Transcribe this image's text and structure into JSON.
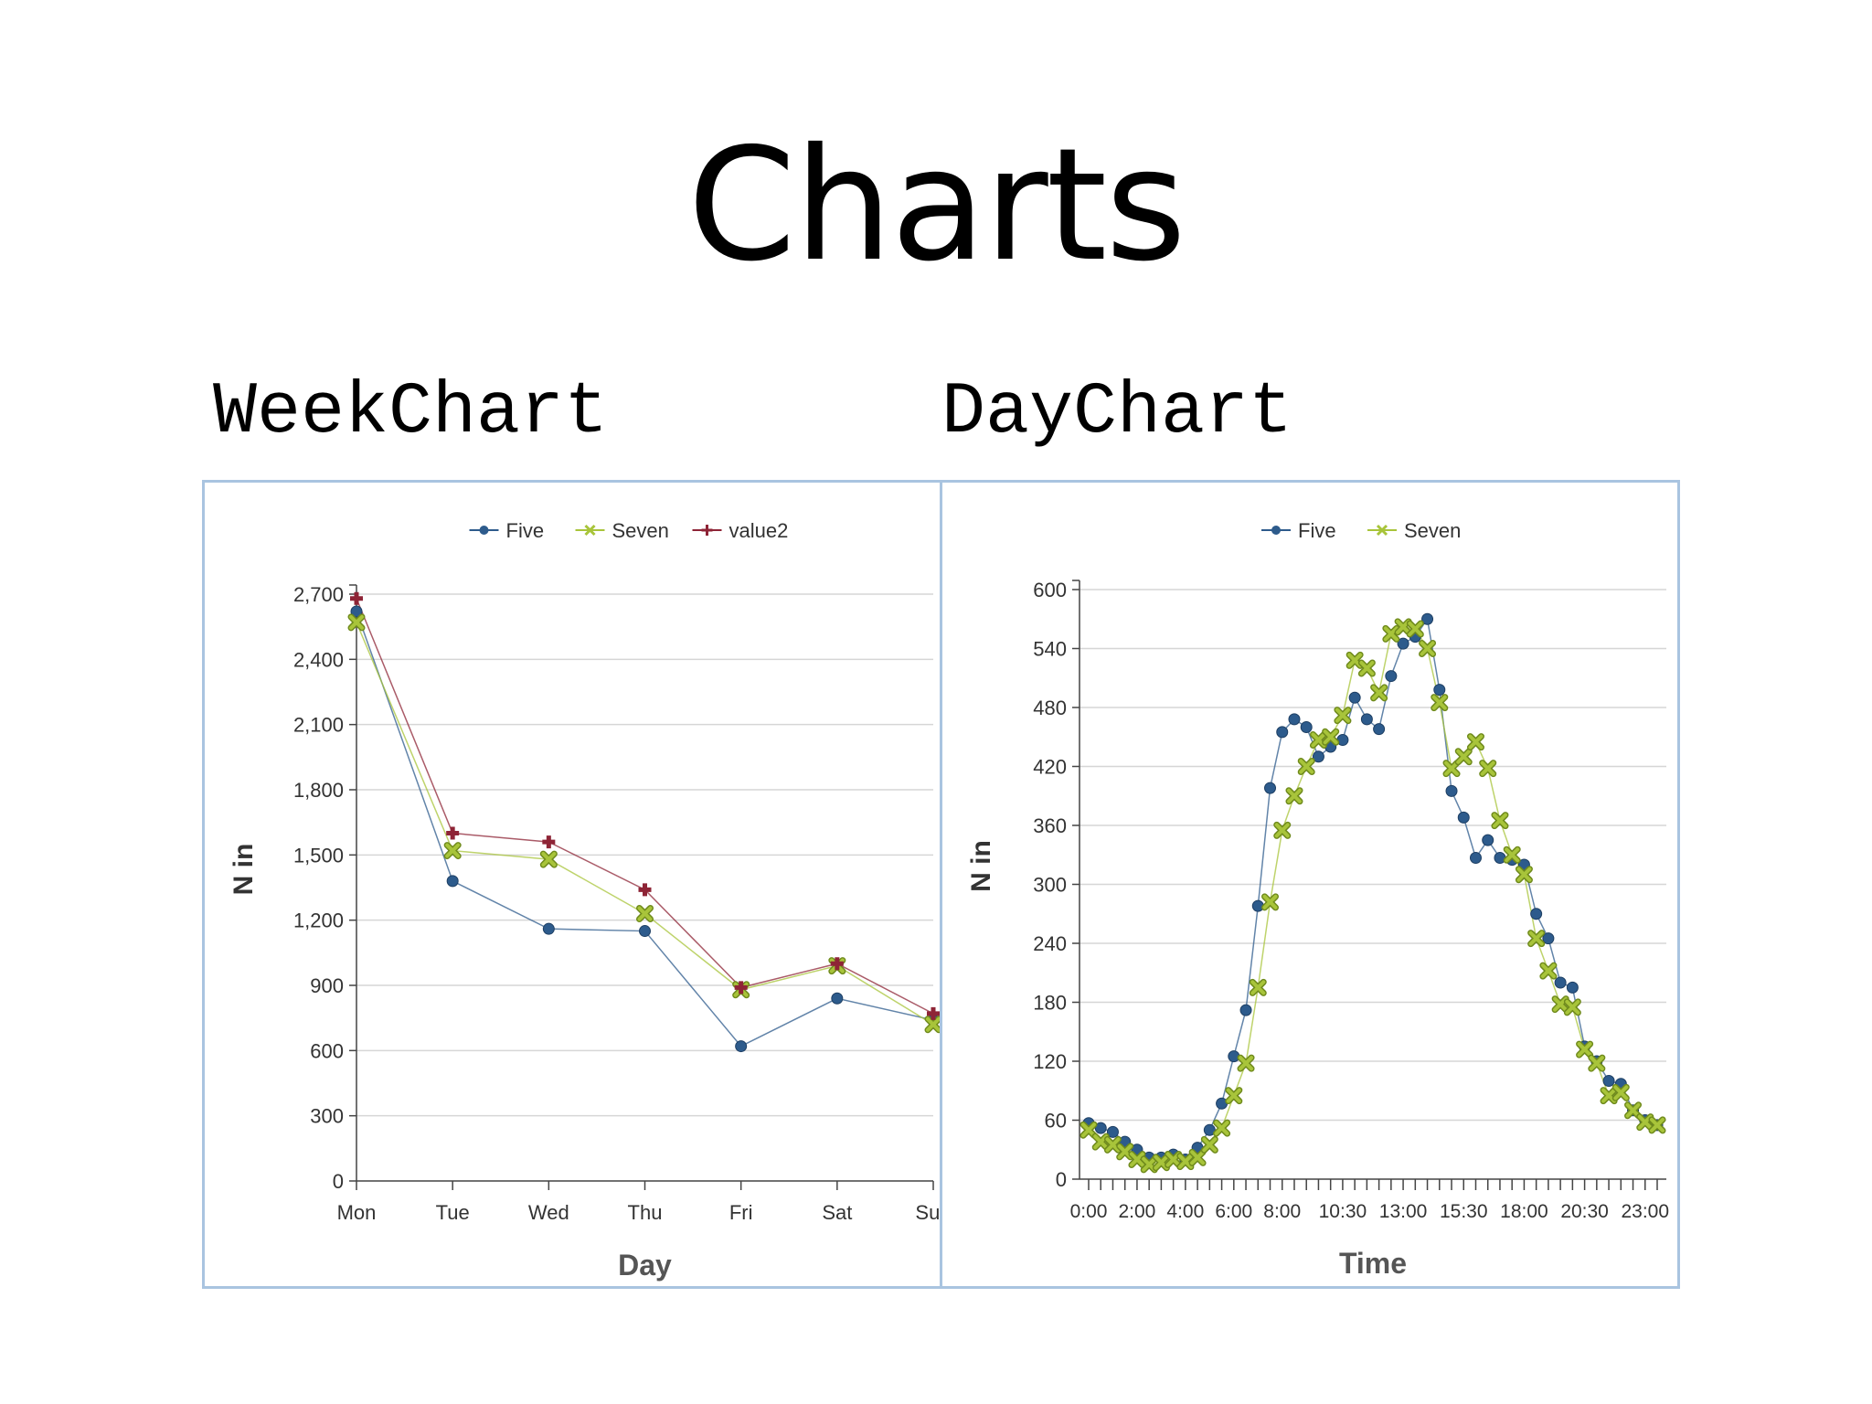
{
  "slide": {
    "title": "Charts"
  },
  "captions": {
    "week": "WeekChart",
    "day": "DayChart"
  },
  "colors": {
    "five": "#2d5b8c",
    "seven": "#a8c43a",
    "value2": "#8e2436",
    "grid": "#d6d6d6",
    "axis": "#444444",
    "panel_border": "#a9c4e0"
  },
  "chart_data": [
    {
      "id": "week",
      "type": "line",
      "title": "",
      "xlabel": "Day",
      "ylabel": "N in",
      "ylim": [
        0,
        2700
      ],
      "yticks": [
        0,
        300,
        600,
        900,
        1200,
        1500,
        1800,
        2100,
        2400,
        2700
      ],
      "ytick_labels": [
        "0",
        "300",
        "600",
        "900",
        "1,200",
        "1,500",
        "1,800",
        "2,100",
        "2,400",
        "2,700"
      ],
      "categories": [
        "Mon",
        "Tue",
        "Wed",
        "Thu",
        "Fri",
        "Sat",
        "Sun"
      ],
      "grid": true,
      "legend_position": "top",
      "series": [
        {
          "name": "Five",
          "color": "#2d5b8c",
          "marker": "circle",
          "values": [
            2620,
            1380,
            1160,
            1150,
            620,
            840,
            740
          ]
        },
        {
          "name": "Seven",
          "color": "#a8c43a",
          "marker": "cross",
          "values": [
            2570,
            1520,
            1480,
            1230,
            880,
            990,
            720
          ]
        },
        {
          "name": "value2",
          "color": "#8e2436",
          "marker": "plus",
          "values": [
            2680,
            1600,
            1560,
            1340,
            890,
            1000,
            770
          ]
        }
      ]
    },
    {
      "id": "day",
      "type": "line",
      "title": "",
      "xlabel": "Time",
      "ylabel": "N in",
      "ylim": [
        0,
        600
      ],
      "yticks": [
        0,
        60,
        120,
        180,
        240,
        300,
        360,
        420,
        480,
        540,
        600
      ],
      "ytick_labels": [
        "0",
        "60",
        "120",
        "180",
        "240",
        "300",
        "360",
        "420",
        "480",
        "540",
        "600"
      ],
      "x": [
        "0:00",
        "0:30",
        "1:00",
        "1:30",
        "2:00",
        "2:30",
        "3:00",
        "3:30",
        "4:00",
        "4:30",
        "5:00",
        "5:30",
        "6:00",
        "6:30",
        "7:00",
        "7:30",
        "8:00",
        "8:30",
        "9:00",
        "9:30",
        "10:00",
        "10:30",
        "11:00",
        "11:30",
        "12:00",
        "12:30",
        "13:00",
        "13:30",
        "14:00",
        "14:30",
        "15:00",
        "15:30",
        "16:00",
        "16:30",
        "17:00",
        "17:30",
        "18:00",
        "18:30",
        "19:00",
        "19:30",
        "20:00",
        "20:30",
        "21:00",
        "21:30",
        "22:00",
        "22:30",
        "23:00",
        "23:30"
      ],
      "xtick_labels": [
        "0:00",
        "2:00",
        "4:00",
        "6:00",
        "8:00",
        "10:30",
        "13:00",
        "15:30",
        "18:00",
        "20:30",
        "23:00"
      ],
      "xtick_label_indices": [
        0,
        4,
        8,
        12,
        16,
        21,
        26,
        31,
        36,
        41,
        46
      ],
      "grid": true,
      "legend_position": "top",
      "series": [
        {
          "name": "Five",
          "color": "#2d5b8c",
          "marker": "circle",
          "values": [
            57,
            52,
            48,
            38,
            30,
            22,
            22,
            25,
            20,
            32,
            50,
            77,
            125,
            172,
            278,
            398,
            455,
            468,
            460,
            430,
            440,
            447,
            490,
            468,
            458,
            512,
            545,
            552,
            570,
            498,
            395,
            368,
            327,
            345,
            327,
            325,
            320,
            270,
            245,
            200,
            195,
            135,
            120,
            100,
            97,
            70,
            60,
            55
          ]
        },
        {
          "name": "Seven",
          "color": "#a8c43a",
          "marker": "cross",
          "values": [
            50,
            38,
            35,
            28,
            20,
            15,
            17,
            20,
            18,
            22,
            35,
            52,
            85,
            118,
            195,
            282,
            355,
            390,
            420,
            447,
            450,
            472,
            528,
            520,
            495,
            555,
            562,
            560,
            540,
            485,
            418,
            430,
            445,
            418,
            365,
            330,
            310,
            245,
            212,
            178,
            175,
            132,
            118,
            85,
            88,
            70,
            58,
            55
          ]
        }
      ]
    }
  ]
}
